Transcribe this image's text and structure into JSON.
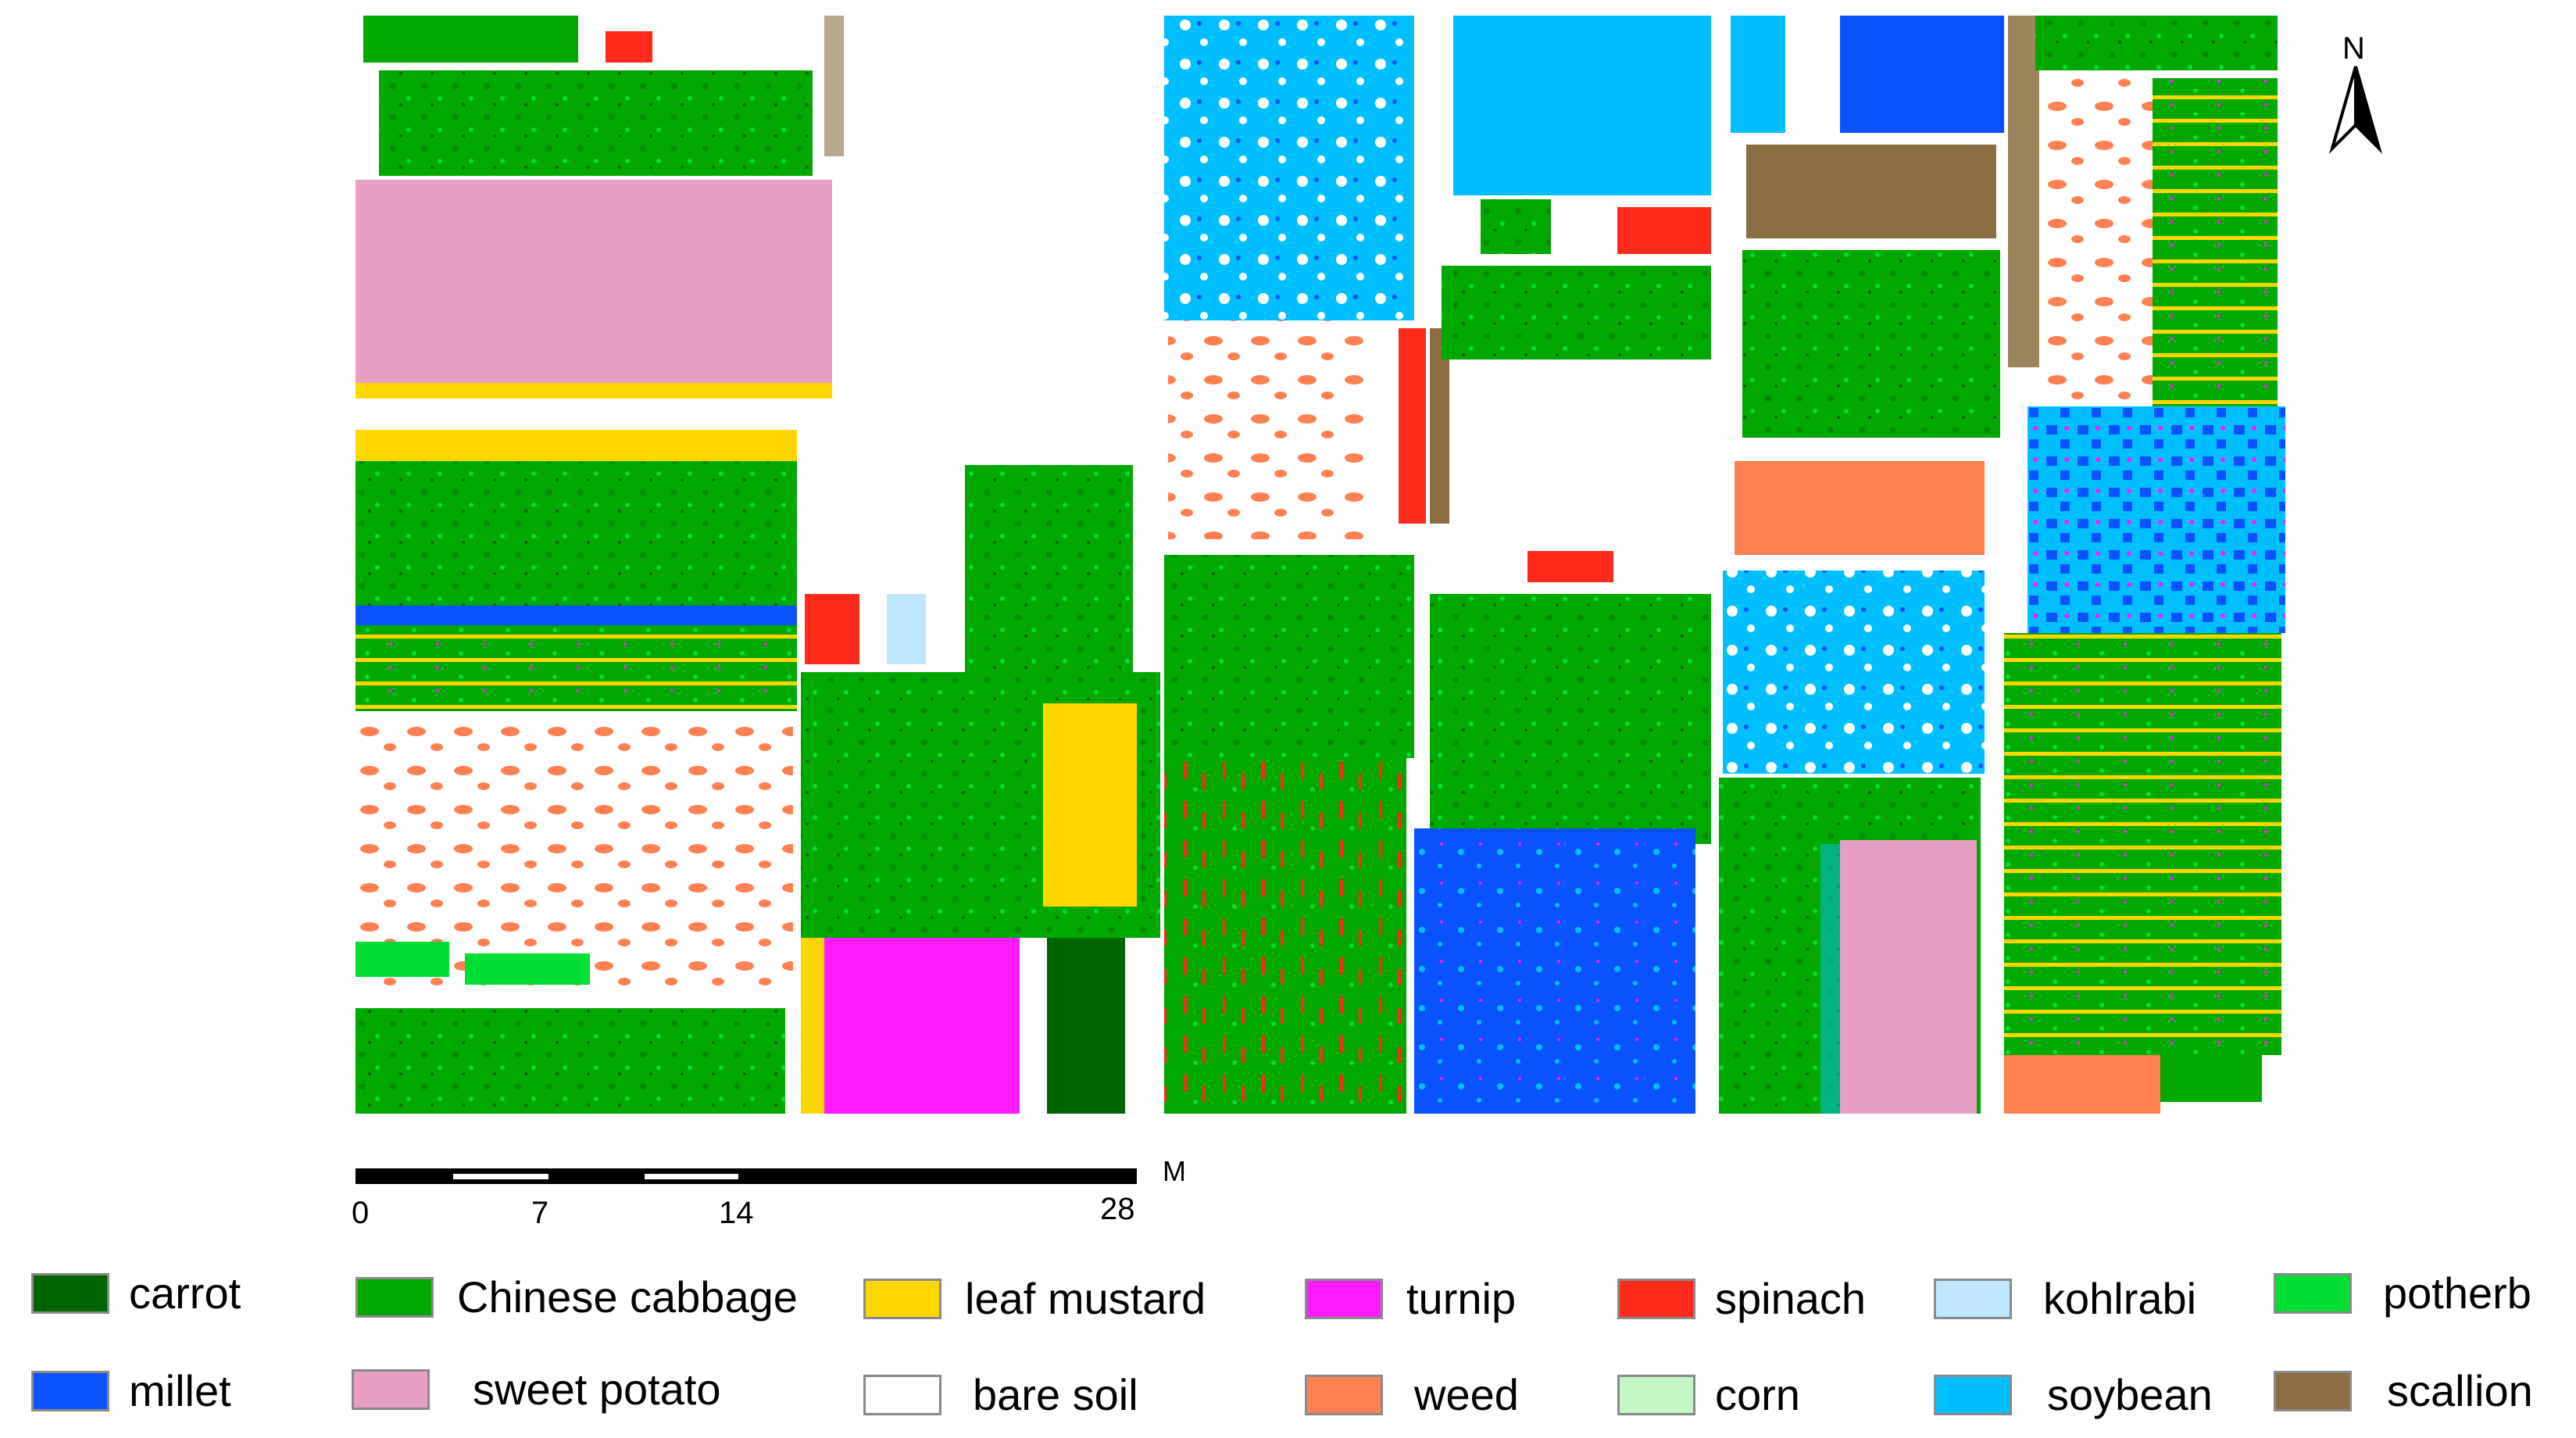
{
  "north_label": "N",
  "scale": {
    "ticks": [
      "0",
      "7",
      "14",
      "28"
    ],
    "unit": "M"
  },
  "legend": [
    {
      "label": "carrot",
      "color": "#006400"
    },
    {
      "label": "Chinese cabbage",
      "color": "#00a800"
    },
    {
      "label": "leaf mustard",
      "color": "#ffd700"
    },
    {
      "label": "turnip",
      "color": "#ff1aff"
    },
    {
      "label": "spinach",
      "color": "#ff2a1a"
    },
    {
      "label": "kohlrabi",
      "color": "#bde8ff"
    },
    {
      "label": "potherb",
      "color": "#00dd33"
    },
    {
      "label": "millet",
      "color": "#0a52ff"
    },
    {
      "label": "sweet potato",
      "color": "#e89fc6"
    },
    {
      "label": "bare soil",
      "color": "#ffffff"
    },
    {
      "label": "weed",
      "color": "#ff8050"
    },
    {
      "label": "corn",
      "color": "#c3f7c3"
    },
    {
      "label": "soybean",
      "color": "#00bfff"
    },
    {
      "label": "scallion",
      "color": "#8c6e40"
    }
  ]
}
